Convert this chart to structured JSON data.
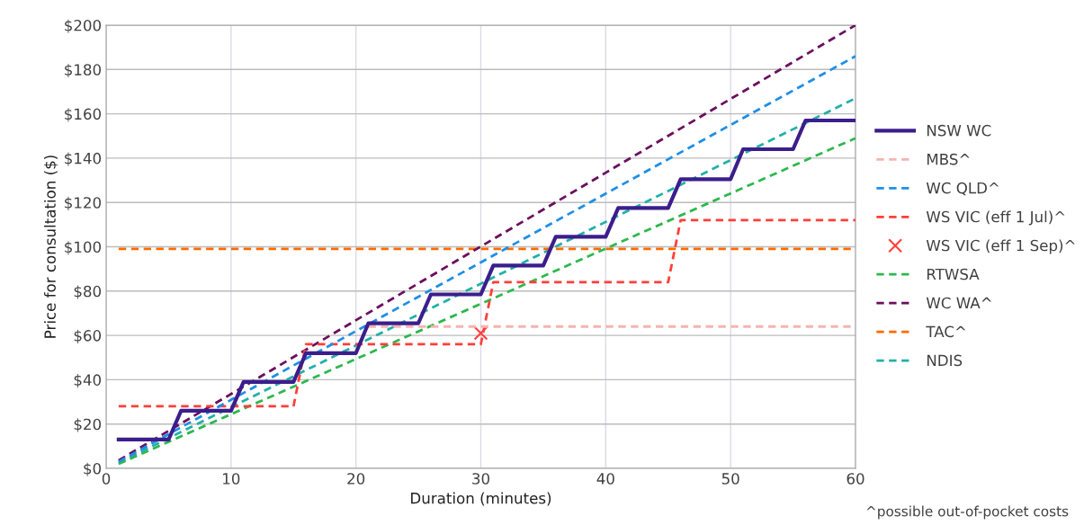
{
  "chart_data": {
    "type": "line",
    "xlabel": "Duration (minutes)",
    "ylabel": "Price for consultation ($)",
    "xlim": [
      0,
      60
    ],
    "xticks": [
      0,
      10,
      20,
      30,
      40,
      50,
      60
    ],
    "ylim": [
      0,
      200
    ],
    "yticks": [
      {
        "value": 0,
        "label": "$0"
      },
      {
        "value": 20,
        "label": "$20"
      },
      {
        "value": 40,
        "label": "$40"
      },
      {
        "value": 60,
        "label": "$60"
      },
      {
        "value": 80,
        "label": "$80"
      },
      {
        "value": 100,
        "label": "$100"
      },
      {
        "value": 120,
        "label": "$120"
      },
      {
        "value": 140,
        "label": "$140"
      },
      {
        "value": 160,
        "label": "$160"
      },
      {
        "value": 180,
        "label": "$180"
      },
      {
        "value": 200,
        "label": "$200"
      }
    ],
    "grid": true,
    "legend": "right",
    "annotations": [
      "^possible out-of-pocket costs"
    ],
    "series": [
      {
        "name": "NSW WC",
        "color": "#3b1e8c",
        "line_style": "solid",
        "x": [
          1,
          5,
          6,
          10,
          11,
          15,
          16,
          20,
          21,
          25,
          26,
          30,
          31,
          35,
          36,
          40,
          41,
          45,
          46,
          50,
          51,
          55,
          56,
          60
        ],
        "values": [
          13,
          13,
          26,
          26,
          39,
          39,
          52,
          52,
          65.5,
          65.5,
          78.5,
          78.5,
          91.5,
          91.5,
          104.5,
          104.5,
          117.5,
          117.5,
          130.5,
          130.5,
          144,
          144,
          157,
          157
        ]
      },
      {
        "name": "MBS^",
        "color": "#f7b3b0",
        "line_style": "dashed",
        "x": [
          21,
          60
        ],
        "values": [
          64,
          64
        ]
      },
      {
        "name": "WC QLD^",
        "color": "#1e8fe6",
        "line_style": "dashed",
        "x": [
          1,
          60
        ],
        "values": [
          3,
          186
        ]
      },
      {
        "name": "WS VIC (eff 1 Jul)^",
        "color": "#ff3f3a",
        "line_style": "dashed",
        "x": [
          1,
          15,
          16,
          30,
          31,
          45,
          46,
          60
        ],
        "values": [
          28,
          28,
          56,
          56,
          84,
          84,
          112,
          112
        ]
      },
      {
        "name": "WS VIC (eff 1 Sep)^",
        "type": "scatter",
        "marker": "cross",
        "color": "#ff3f3a",
        "x": [
          30
        ],
        "values": [
          61
        ]
      },
      {
        "name": "RTWSA",
        "color": "#2db84d",
        "line_style": "dashed",
        "x": [
          1,
          60
        ],
        "values": [
          2,
          149
        ]
      },
      {
        "name": "WC WA^",
        "color": "#6b0f5e",
        "line_style": "dashed",
        "x": [
          1,
          60
        ],
        "values": [
          3.6,
          200
        ]
      },
      {
        "name": "TAC^",
        "color": "#ff6a00",
        "line_style": "dashed",
        "x": [
          1,
          60
        ],
        "values": [
          99,
          99
        ]
      },
      {
        "name": "NDIS",
        "color": "#22b0a8",
        "line_style": "dashed",
        "x": [
          1,
          60
        ],
        "values": [
          2.5,
          167
        ]
      }
    ]
  }
}
